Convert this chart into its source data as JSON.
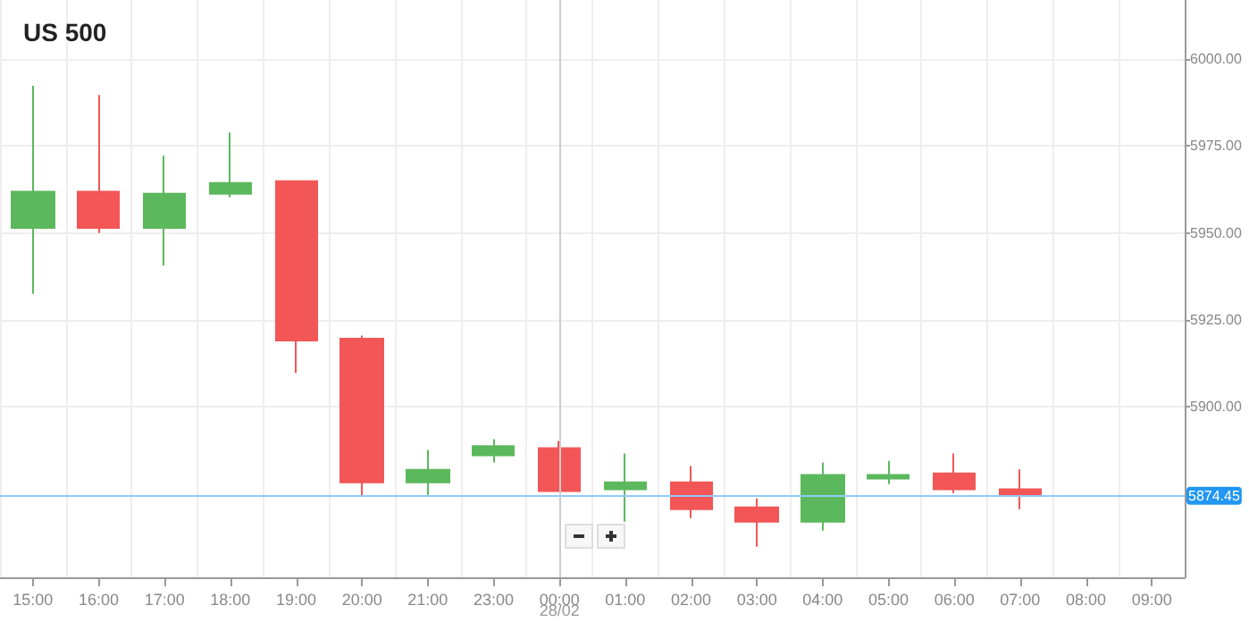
{
  "chart_data": {
    "type": "candlestick",
    "title": "US 500",
    "categories": [
      "15:00",
      "16:00",
      "17:00",
      "18:00",
      "19:00",
      "20:00",
      "21:00",
      "23:00",
      "00:00",
      "01:00",
      "02:00",
      "03:00",
      "04:00",
      "05:00",
      "06:00",
      "07:00",
      "08:00",
      "09:00"
    ],
    "ohlc": [
      [
        5951.5,
        5992.3,
        5932.5,
        5961.9
      ],
      [
        5961.9,
        5989.7,
        5950.0,
        5951.5
      ],
      [
        5951.5,
        5972.2,
        5940.7,
        5961.3
      ],
      [
        5961.3,
        5978.9,
        5960.3,
        5964.4
      ],
      [
        5964.9,
        5965.0,
        5909.8,
        5919.1
      ],
      [
        5919.6,
        5920.5,
        5874.2,
        5878.3
      ],
      [
        5878.3,
        5887.6,
        5874.7,
        5881.9
      ],
      [
        5886.1,
        5890.7,
        5884.0,
        5888.7
      ],
      [
        5888.1,
        5890.2,
        5875.8,
        5875.8
      ],
      [
        5876.3,
        5886.6,
        5867.0,
        5878.3
      ],
      [
        5878.3,
        5883.0,
        5868.0,
        5870.6
      ],
      [
        5871.1,
        5873.7,
        5859.8,
        5867.0
      ],
      [
        5867.0,
        5884.0,
        5864.4,
        5880.4
      ],
      [
        5879.4,
        5884.5,
        5877.8,
        5880.4
      ],
      [
        5880.9,
        5886.6,
        5875.2,
        5876.3
      ],
      [
        5876.3,
        5882.0,
        5870.6,
        5874.45
      ],
      null,
      null
    ],
    "colors": [
      "#5cb85c",
      "#f25656",
      "#5cb85c",
      "#5cb85c",
      "#f25656",
      "#f25656",
      "#5cb85c",
      "#5cb85c",
      "#f25656",
      "#5cb85c",
      "#f25656",
      "#f25656",
      "#5cb85c",
      "#5cb85c",
      "#f25656",
      "#f25656",
      null,
      null
    ],
    "ylim": [
      5851,
      6017
    ],
    "yticks": [
      {
        "value": 5900,
        "label": "5900.00"
      },
      {
        "value": 5925,
        "label": "5925.00"
      },
      {
        "value": 5950,
        "label": "5950.00"
      },
      {
        "value": 5975,
        "label": "5975.00"
      },
      {
        "value": 6000,
        "label": "6000.00"
      }
    ],
    "grid": true,
    "ref_lines": [
      {
        "axis": "y",
        "value": 5874.45,
        "label": "5874.45",
        "color": "#90caf9"
      },
      {
        "axis": "x",
        "value": "00:00",
        "label": "28/02",
        "color": "#cccccc"
      }
    ]
  }
}
